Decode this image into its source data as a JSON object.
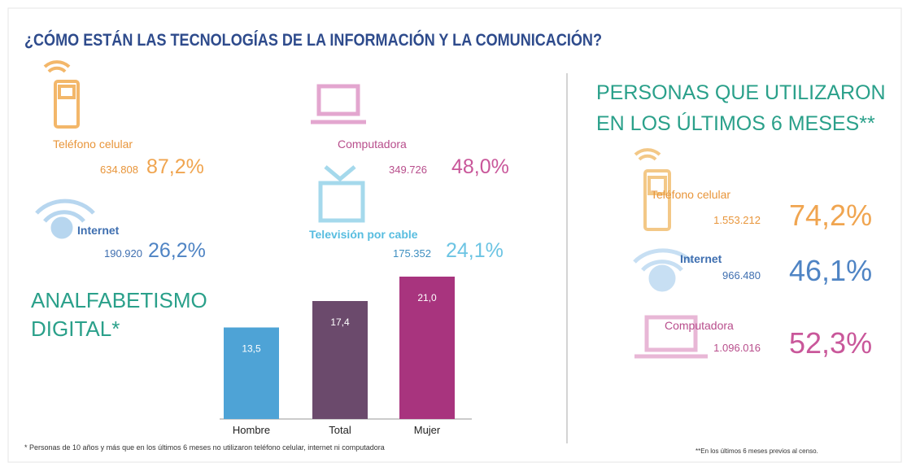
{
  "title": "¿CÓMO ESTÁN LAS TECNOLOGÍAS DE LA INFORMACIÓN Y LA COMUNICACIÓN?",
  "households": [
    {
      "label": "Teléfono celular",
      "count": "634.808",
      "percent": "87,2%"
    },
    {
      "label": "Computadora",
      "count": "349.726",
      "percent": "48,0%"
    },
    {
      "label": "Internet",
      "count": "190.920",
      "percent": "26,2%"
    },
    {
      "label": "Televisión por cable",
      "count": "175.352",
      "percent": "24,1%"
    }
  ],
  "chart_data": {
    "type": "bar",
    "title": [
      "ANALFABETISMO",
      "DIGITAL*"
    ],
    "categories": [
      "Hombre",
      "Total",
      "Mujer"
    ],
    "values": [
      13.5,
      17.4,
      21.0
    ],
    "value_labels": [
      "13,5",
      "17,4",
      "21,0"
    ],
    "colors": [
      "#4ea3d6",
      "#6b4a6c",
      "#a8347e"
    ]
  },
  "footnote": "* Personas de 10 años y más que en los últimos 6 meses no utilizaron teléfono celular, internet ni computadora",
  "persons": {
    "heading": [
      "PERSONAS QUE UTILIZARON",
      "EN LOS ÚLTIMOS 6 MESES**"
    ],
    "items": [
      {
        "label": "Teléfono celular",
        "count": "1.553.212",
        "percent": "74,2%"
      },
      {
        "label": "Internet",
        "count": "966.480",
        "percent": "46,1%"
      },
      {
        "label": "Computadora",
        "count": "1.096.016",
        "percent": "52,3%"
      }
    ],
    "footnote": "**En los últimos 6 meses previos al censo."
  }
}
